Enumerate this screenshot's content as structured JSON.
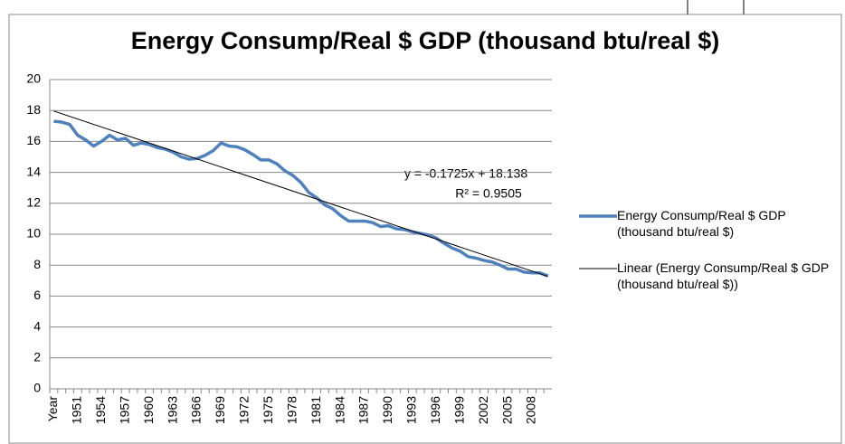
{
  "chart_data": {
    "type": "line",
    "title": "Energy Consump/Real $ GDP (thousand btu/real $)",
    "categories": [
      "Year",
      null,
      null,
      "1951",
      null,
      null,
      "1954",
      null,
      null,
      "1957",
      null,
      null,
      "1960",
      null,
      null,
      "1963",
      null,
      null,
      "1966",
      null,
      null,
      "1969",
      null,
      null,
      "1972",
      null,
      null,
      "1975",
      null,
      null,
      "1978",
      null,
      null,
      "1981",
      null,
      null,
      "1984",
      null,
      null,
      "1987",
      null,
      null,
      "1990",
      null,
      null,
      "1993",
      null,
      null,
      "1996",
      null,
      null,
      "1999",
      null,
      null,
      "2002",
      null,
      null,
      "2005",
      null,
      null,
      "2008",
      null,
      null
    ],
    "series": [
      {
        "name": "Energy Consump/Real $ GDP (thousand btu/real $)",
        "color": "#4f81bd",
        "values": [
          17.3,
          17.25,
          17.1,
          16.4,
          16.1,
          15.7,
          16.0,
          16.4,
          16.1,
          16.2,
          15.75,
          15.9,
          15.8,
          15.6,
          15.5,
          15.3,
          15.0,
          14.85,
          14.9,
          15.1,
          15.4,
          15.9,
          15.7,
          15.65,
          15.45,
          15.15,
          14.8,
          14.8,
          14.55,
          14.1,
          13.8,
          13.35,
          12.7,
          12.35,
          11.9,
          11.65,
          11.2,
          10.85,
          10.85,
          10.85,
          10.75,
          10.5,
          10.55,
          10.35,
          10.3,
          10.15,
          10.05,
          9.95,
          9.75,
          9.4,
          9.1,
          8.9,
          8.55,
          8.45,
          8.3,
          8.2,
          8.0,
          7.75,
          7.75,
          7.55,
          7.5,
          7.5,
          7.3
        ]
      }
    ],
    "trend": {
      "name": "Linear (Energy Consump/Real $ GDP (thousand btu/real $))",
      "color": "#000000",
      "slope": -0.1725,
      "intercept": 18.138,
      "equation": "y = -0.1725x + 18.138",
      "r_squared": "R² = 0.9505"
    },
    "ylim": [
      0,
      20
    ],
    "yticks": [
      0,
      2,
      4,
      6,
      8,
      10,
      12,
      14,
      16,
      18,
      20
    ],
    "grid": true,
    "legend": "right"
  }
}
